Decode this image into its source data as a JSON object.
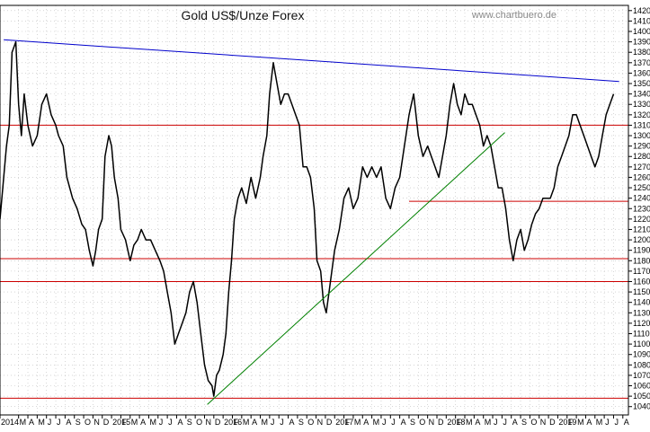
{
  "chart_data": {
    "type": "line",
    "title": "Gold US$/Unze Forex",
    "source": "www.chartbuero.de",
    "ylim": [
      1032,
      1425
    ],
    "y_ticks": [
      1040,
      1050,
      1060,
      1070,
      1080,
      1090,
      1100,
      1110,
      1120,
      1130,
      1140,
      1150,
      1160,
      1170,
      1180,
      1190,
      1200,
      1210,
      1220,
      1230,
      1240,
      1250,
      1260,
      1270,
      1280,
      1290,
      1300,
      1310,
      1320,
      1330,
      1340,
      1350,
      1360,
      1370,
      1380,
      1390,
      1400,
      1410,
      1420
    ],
    "y_tick_labels": [
      "1040",
      "1050",
      "1060",
      "1070",
      "1080",
      "1090",
      "1100",
      "1110",
      "1120",
      "1130",
      "1140",
      "1150",
      "1160",
      "1170",
      "1180",
      "1190",
      "1200",
      "1210",
      "1220",
      "1230",
      "1240",
      "1250",
      "1260",
      "1270",
      "1280",
      "1290",
      "1300",
      "1310",
      "1320",
      "1330",
      "1340",
      "1350",
      "1360",
      "1370",
      "1380",
      "1390",
      "1400",
      "1410",
      "1420"
    ],
    "x_range": [
      0,
      67.6
    ],
    "x_ticks": [
      {
        "label": "2014",
        "m": 0
      },
      {
        "label": "M",
        "m": 2
      },
      {
        "label": "A",
        "m": 3
      },
      {
        "label": "M",
        "m": 4
      },
      {
        "label": "J",
        "m": 5
      },
      {
        "label": "J",
        "m": 6
      },
      {
        "label": "A",
        "m": 7
      },
      {
        "label": "S",
        "m": 8
      },
      {
        "label": "O",
        "m": 9
      },
      {
        "label": "N",
        "m": 10
      },
      {
        "label": "D",
        "m": 11
      },
      {
        "label": "2015",
        "m": 12
      },
      {
        "label": "F",
        "m": 13
      },
      {
        "label": "M",
        "m": 14
      },
      {
        "label": "A",
        "m": 15
      },
      {
        "label": "M",
        "m": 16
      },
      {
        "label": "J",
        "m": 17
      },
      {
        "label": "J",
        "m": 18
      },
      {
        "label": "A",
        "m": 19
      },
      {
        "label": "S",
        "m": 20
      },
      {
        "label": "O",
        "m": 21
      },
      {
        "label": "N",
        "m": 22
      },
      {
        "label": "D",
        "m": 23
      },
      {
        "label": "2016",
        "m": 24
      },
      {
        "label": "F",
        "m": 25
      },
      {
        "label": "M",
        "m": 26
      },
      {
        "label": "A",
        "m": 27
      },
      {
        "label": "M",
        "m": 28
      },
      {
        "label": "J",
        "m": 29
      },
      {
        "label": "J",
        "m": 30
      },
      {
        "label": "A",
        "m": 31
      },
      {
        "label": "S",
        "m": 32
      },
      {
        "label": "O",
        "m": 33
      },
      {
        "label": "N",
        "m": 34
      },
      {
        "label": "D",
        "m": 35
      },
      {
        "label": "2017",
        "m": 36
      },
      {
        "label": "F",
        "m": 37
      },
      {
        "label": "M",
        "m": 38
      },
      {
        "label": "A",
        "m": 39
      },
      {
        "label": "M",
        "m": 40
      },
      {
        "label": "J",
        "m": 41
      },
      {
        "label": "J",
        "m": 42
      },
      {
        "label": "A",
        "m": 43
      },
      {
        "label": "S",
        "m": 44
      },
      {
        "label": "O",
        "m": 45
      },
      {
        "label": "N",
        "m": 46
      },
      {
        "label": "D",
        "m": 47
      },
      {
        "label": "2018",
        "m": 48
      },
      {
        "label": "F",
        "m": 49
      },
      {
        "label": "M",
        "m": 50
      },
      {
        "label": "A",
        "m": 51
      },
      {
        "label": "M",
        "m": 52
      },
      {
        "label": "J",
        "m": 53
      },
      {
        "label": "J",
        "m": 54
      },
      {
        "label": "A",
        "m": 55
      },
      {
        "label": "S",
        "m": 56
      },
      {
        "label": "O",
        "m": 57
      },
      {
        "label": "N",
        "m": 58
      },
      {
        "label": "D",
        "m": 59
      },
      {
        "label": "2019",
        "m": 60
      },
      {
        "label": "F",
        "m": 61
      },
      {
        "label": "M",
        "m": 62
      },
      {
        "label": "A",
        "m": 63
      },
      {
        "label": "M",
        "m": 64
      },
      {
        "label": "J",
        "m": 65
      },
      {
        "label": "J",
        "m": 66
      },
      {
        "label": "A",
        "m": 67
      }
    ],
    "grid": true,
    "series": [
      {
        "color": "#000000",
        "x": [
          0,
          0.3,
          0.7,
          1.0,
          1.3,
          1.7,
          2.0,
          2.3,
          2.6,
          3.0,
          3.5,
          4.0,
          4.5,
          5.0,
          5.5,
          6.0,
          6.3,
          6.8,
          7.2,
          7.8,
          8.3,
          8.8,
          9.2,
          9.6,
          10.0,
          10.3,
          10.6,
          11.0,
          11.3,
          11.7,
          12.0,
          12.3,
          12.7,
          13.0,
          13.5,
          14.0,
          14.4,
          14.8,
          15.2,
          15.7,
          16.2,
          16.7,
          17.2,
          17.6,
          18.0,
          18.4,
          18.8,
          19.2,
          19.6,
          20.0,
          20.4,
          20.8,
          21.2,
          21.6,
          22.0,
          22.4,
          22.8,
          23.0,
          23.3,
          23.6,
          24.0,
          24.3,
          24.6,
          24.9,
          25.2,
          25.6,
          26.0,
          26.5,
          27.0,
          27.5,
          28.0,
          28.3,
          28.7,
          29.0,
          29.4,
          29.8,
          30.2,
          30.6,
          31.0,
          31.4,
          31.8,
          32.2,
          32.6,
          33.0,
          33.4,
          33.8,
          34.1,
          34.5,
          34.8,
          35.1,
          35.4,
          35.7,
          36.0,
          36.5,
          37.0,
          37.5,
          38.0,
          38.5,
          39.0,
          39.5,
          40.0,
          40.5,
          41.0,
          41.5,
          42.0,
          42.5,
          43.0,
          43.5,
          44.0,
          44.5,
          45.0,
          45.5,
          46.0,
          46.4,
          46.8,
          47.2,
          47.6,
          48.0,
          48.4,
          48.8,
          49.2,
          49.6,
          50.0,
          50.4,
          50.8,
          51.2,
          51.6,
          52.0,
          52.4,
          52.8,
          53.2,
          53.6,
          54.0,
          54.4,
          54.8,
          55.2,
          55.6,
          56.0,
          56.4,
          56.8,
          57.2,
          57.6,
          58.0,
          58.4,
          58.8,
          59.2,
          59.6,
          60.0,
          60.4,
          60.8,
          61.2,
          61.6,
          62.0,
          62.4,
          62.8,
          63.2,
          63.6,
          64.0,
          64.4,
          64.8,
          65.2,
          65.6,
          66.0
        ],
        "values": [
          1220,
          1250,
          1290,
          1310,
          1380,
          1390,
          1330,
          1300,
          1340,
          1310,
          1290,
          1300,
          1330,
          1340,
          1320,
          1310,
          1300,
          1290,
          1260,
          1240,
          1230,
          1215,
          1210,
          1190,
          1175,
          1190,
          1210,
          1220,
          1280,
          1300,
          1290,
          1260,
          1240,
          1210,
          1200,
          1180,
          1195,
          1200,
          1210,
          1200,
          1200,
          1190,
          1180,
          1170,
          1150,
          1130,
          1100,
          1110,
          1120,
          1130,
          1150,
          1160,
          1140,
          1110,
          1080,
          1065,
          1060,
          1050,
          1070,
          1075,
          1090,
          1110,
          1150,
          1180,
          1220,
          1240,
          1250,
          1235,
          1260,
          1240,
          1260,
          1280,
          1300,
          1340,
          1370,
          1350,
          1330,
          1340,
          1340,
          1330,
          1320,
          1310,
          1270,
          1270,
          1260,
          1230,
          1180,
          1170,
          1140,
          1130,
          1150,
          1170,
          1190,
          1210,
          1240,
          1250,
          1230,
          1240,
          1270,
          1260,
          1270,
          1260,
          1270,
          1240,
          1230,
          1250,
          1260,
          1290,
          1320,
          1340,
          1300,
          1280,
          1290,
          1280,
          1270,
          1260,
          1280,
          1300,
          1330,
          1350,
          1330,
          1320,
          1340,
          1330,
          1330,
          1320,
          1310,
          1290,
          1300,
          1290,
          1270,
          1250,
          1250,
          1230,
          1200,
          1180,
          1200,
          1210,
          1190,
          1200,
          1215,
          1225,
          1230,
          1240,
          1240,
          1240,
          1250,
          1270,
          1280,
          1290,
          1300,
          1320,
          1320,
          1310,
          1300,
          1290,
          1280,
          1270,
          1280,
          1300,
          1320,
          1330,
          1340
        ]
      },
      {
        "color": "#0000cc",
        "x": [
          0.4,
          66.6
        ],
        "values": [
          1392,
          1352
        ]
      },
      {
        "color": "#008000",
        "x": [
          22.3,
          54.3
        ],
        "values": [
          1042,
          1303
        ]
      }
    ],
    "hlines": [
      {
        "value": 1310,
        "color": "#cc0000",
        "from": 0,
        "to": 67.6
      },
      {
        "value": 1237,
        "color": "#cc0000",
        "from": 44.0,
        "to": 67.6
      },
      {
        "value": 1182,
        "color": "#cc0000",
        "from": 0,
        "to": 67.6
      },
      {
        "value": 1160,
        "color": "#cc0000",
        "from": 0,
        "to": 67.6
      },
      {
        "value": 1048,
        "color": "#cc0000",
        "from": 0,
        "to": 67.6
      }
    ]
  }
}
